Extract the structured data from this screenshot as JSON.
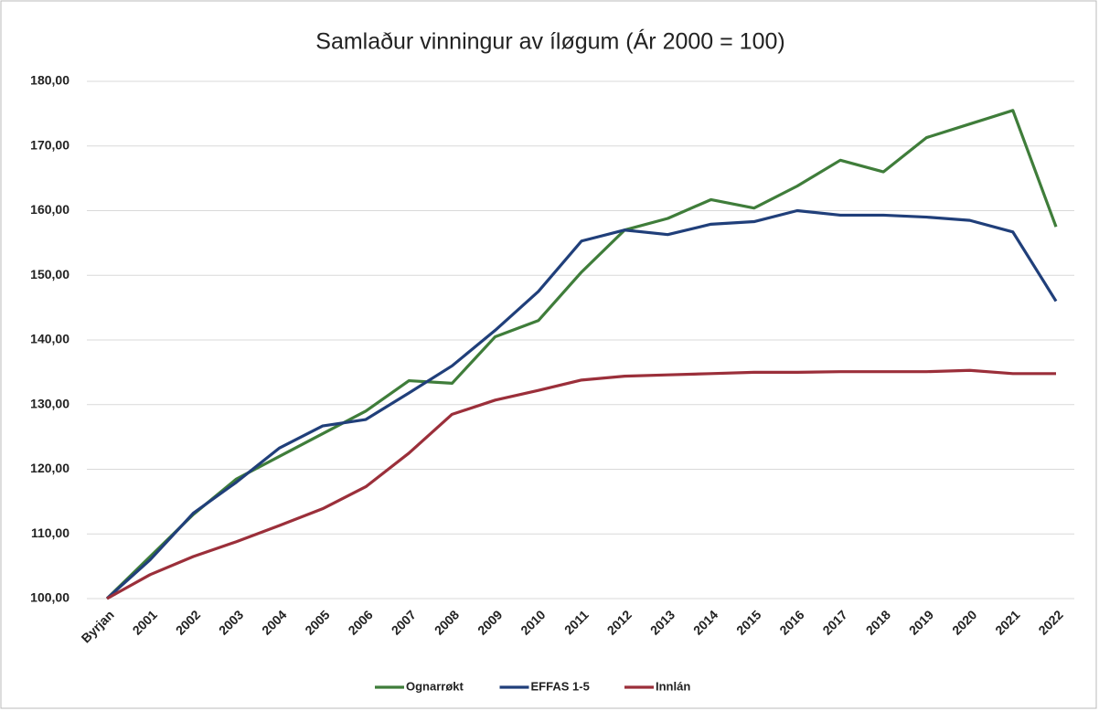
{
  "chart_data": {
    "type": "line",
    "title": "Samlaður vinningur av íløgum (Ár 2000 = 100)",
    "categories": [
      "Byrjan",
      "2001",
      "2002",
      "2003",
      "2004",
      "2005",
      "2006",
      "2007",
      "2008",
      "2009",
      "2010",
      "2011",
      "2012",
      "2013",
      "2014",
      "2015",
      "2016",
      "2017",
      "2018",
      "2019",
      "2020",
      "2021",
      "2022"
    ],
    "series": [
      {
        "name": "Ognarrøkt",
        "color": "#3f7d3a",
        "values": [
          100,
          106.5,
          113,
          118.5,
          122,
          125.5,
          129,
          133.7,
          133.3,
          140.5,
          143,
          150.5,
          157,
          158.8,
          161.7,
          160.4,
          163.8,
          167.8,
          166,
          171.3,
          173.4,
          175.5,
          157.5
        ]
      },
      {
        "name": "EFFAS 1-5",
        "color": "#203f7a",
        "values": [
          100,
          106,
          113.2,
          118,
          123.3,
          126.7,
          127.7,
          131.8,
          136,
          141.5,
          147.5,
          155.3,
          157,
          156.3,
          157.9,
          158.3,
          160,
          159.3,
          159.3,
          159,
          158.5,
          156.7,
          146
        ]
      },
      {
        "name": "Innlán",
        "color": "#9b2f3a",
        "values": [
          100,
          103.7,
          106.5,
          108.8,
          111.3,
          113.9,
          117.3,
          122.5,
          128.5,
          130.7,
          132.2,
          133.8,
          134.4,
          134.6,
          134.8,
          135,
          135,
          135.1,
          135.1,
          135.1,
          135.3,
          134.8,
          134.8
        ]
      }
    ],
    "ylim": [
      100,
      180
    ],
    "yticks": [
      {
        "value": 100,
        "label": "100,00"
      },
      {
        "value": 110,
        "label": "110,00"
      },
      {
        "value": 120,
        "label": "120,00"
      },
      {
        "value": 130,
        "label": "130,00"
      },
      {
        "value": 140,
        "label": "140,00"
      },
      {
        "value": 150,
        "label": "150,00"
      },
      {
        "value": 160,
        "label": "160,00"
      },
      {
        "value": 170,
        "label": "170,00"
      },
      {
        "value": 180,
        "label": "180,00"
      }
    ],
    "grid": true,
    "legend": "bottom"
  }
}
